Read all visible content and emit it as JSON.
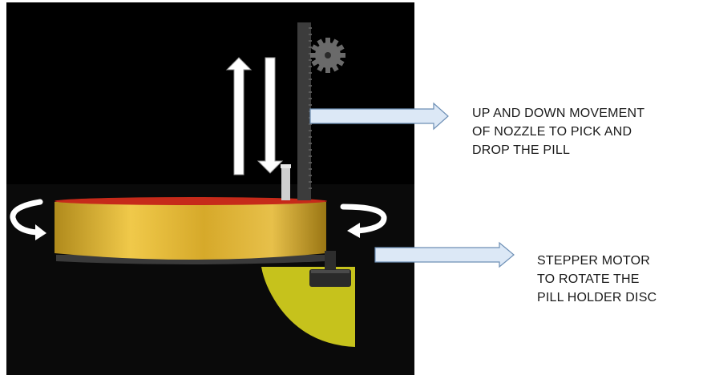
{
  "labels": {
    "nozzle": [
      "UP AND DOWN MOVEMENT",
      "OF NOZZLE TO PICK AND",
      "DROP THE PILL"
    ],
    "motor": [
      "STEPPER MOTOR",
      "TO ROTATE THE",
      "PILL HOLDER DISC"
    ]
  },
  "colors": {
    "background": "#ffffff",
    "panel": "#000000",
    "disc_gold": "#d7b23a",
    "disc_rim": "#c62a1a",
    "motor_yellow": "#c6c21c",
    "pointer_fill": "#dce8f6",
    "pointer_stroke": "#6d8fb5"
  },
  "icons": [
    "rotate-left-arrow-icon",
    "rotate-right-arrow-icon",
    "up-arrow-icon",
    "down-arrow-icon",
    "gear-icon",
    "rack-icon",
    "nozzle-icon"
  ]
}
